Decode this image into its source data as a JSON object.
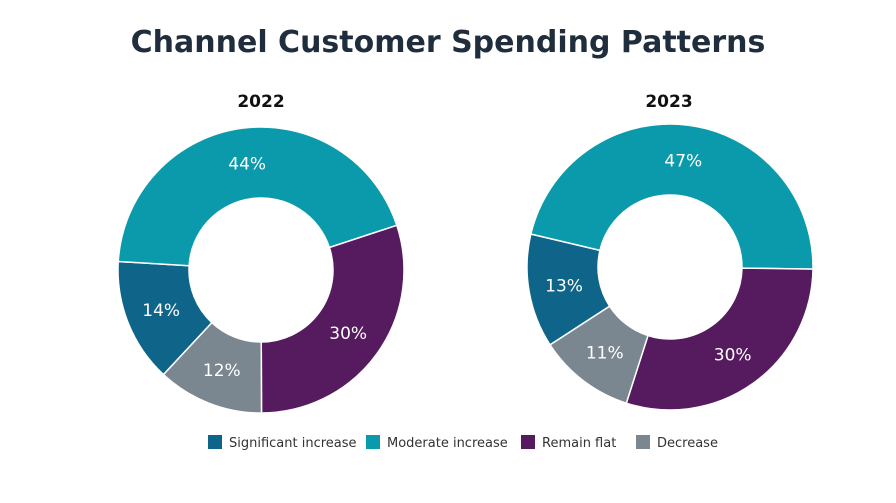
{
  "chart_data": {
    "type": "pie",
    "title": "Channel Customer Spending Patterns",
    "legend_position": "bottom",
    "categories": [
      "Significant increase",
      "Moderate increase",
      "Remain flat",
      "Decrease"
    ],
    "colors": [
      "#0e6589",
      "#0a9aab",
      "#561a5e",
      "#7a8791"
    ],
    "charts": [
      {
        "year": "2022",
        "values": [
          14,
          44,
          30,
          12
        ],
        "labels": [
          "14%",
          "44%",
          "30%",
          "12%"
        ]
      },
      {
        "year": "2023",
        "values": [
          13,
          47,
          30,
          11
        ],
        "labels": [
          "13%",
          "47%",
          "30%",
          "11%"
        ]
      }
    ]
  }
}
